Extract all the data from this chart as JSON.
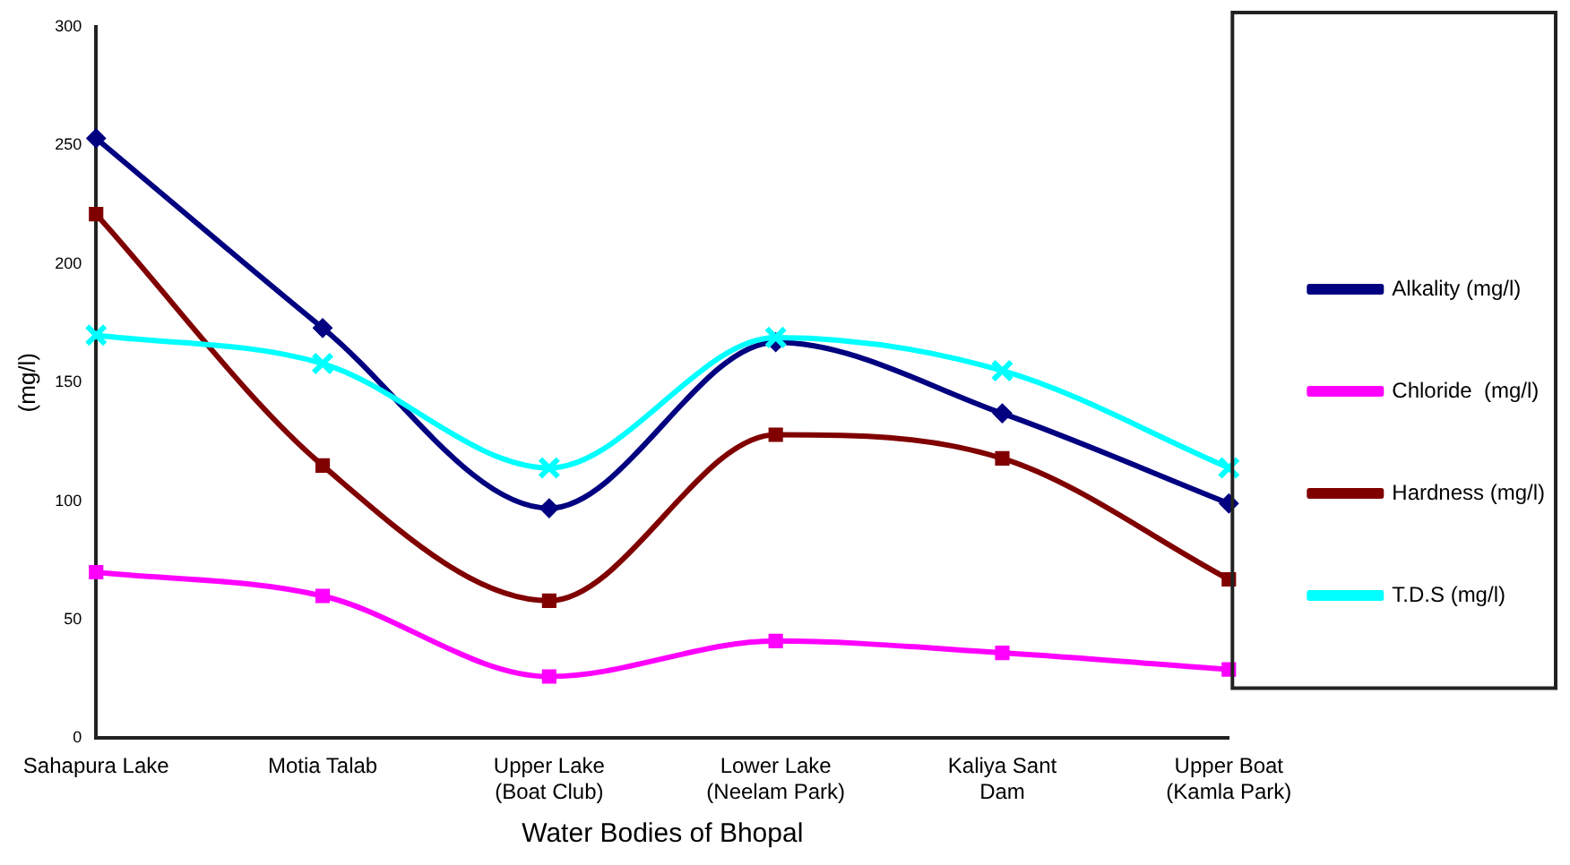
{
  "chart_data": {
    "type": "line",
    "xlabel": "Water Bodies of Bhopal",
    "ylabel": "(mg/l)",
    "categories": [
      "Sahapura Lake",
      "Motia Talab",
      "Upper Lake (Boat Club)",
      "Lower Lake (Neelam Park)",
      "Kaliya Sant Dam",
      "Upper Boat (Kamla Park)"
    ],
    "series": [
      {
        "name": "Alkality (mg/l)",
        "color": "#000080",
        "marker": "diamond",
        "values": [
          253,
          173,
          97,
          167,
          137,
          99
        ]
      },
      {
        "name": "Chloride  (mg/l)",
        "color": "#ff00ff",
        "marker": "square",
        "values": [
          70,
          60,
          26,
          41,
          36,
          29
        ]
      },
      {
        "name": "Hardness (mg/l)",
        "color": "#800000",
        "marker": "square",
        "values": [
          221,
          115,
          58,
          128,
          118,
          67
        ]
      },
      {
        "name": "T.D.S (mg/l)",
        "color": "#00ffff",
        "marker": "cross",
        "values": [
          170,
          158,
          114,
          169,
          155,
          114
        ]
      }
    ],
    "ylim": [
      0,
      300
    ],
    "yticks": [
      0,
      50,
      100,
      150,
      200,
      250,
      300
    ],
    "grid": false,
    "legend": "right"
  }
}
